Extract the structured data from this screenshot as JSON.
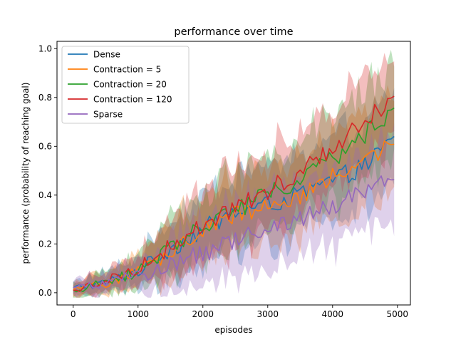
{
  "chart_data": {
    "type": "line",
    "title": "performance over time",
    "xlabel": "episodes",
    "ylabel": "performance (probability of reaching goal)",
    "xlim": [
      -250,
      5200
    ],
    "ylim": [
      -0.05,
      1.03
    ],
    "xticks": [
      0,
      1000,
      2000,
      3000,
      4000,
      5000
    ],
    "xtick_labels": [
      "0",
      "1000",
      "2000",
      "3000",
      "4000",
      "5000"
    ],
    "yticks": [
      0.0,
      0.2,
      0.4,
      0.6,
      0.8,
      1.0
    ],
    "ytick_labels": [
      "0.0",
      "0.2",
      "0.4",
      "0.6",
      "0.8",
      "1.0"
    ],
    "grid": false,
    "legend_position": "upper-left",
    "x_start": 0,
    "x_end": 4950,
    "x_step": 50,
    "series": [
      {
        "name": "Dense",
        "color": "#1f77b4",
        "anchors": [
          [
            0,
            0.02
          ],
          [
            500,
            0.04
          ],
          [
            1000,
            0.09
          ],
          [
            1500,
            0.18
          ],
          [
            2000,
            0.26
          ],
          [
            2500,
            0.33
          ],
          [
            3000,
            0.36
          ],
          [
            3500,
            0.4
          ],
          [
            4000,
            0.46
          ],
          [
            4500,
            0.52
          ],
          [
            4950,
            0.63
          ]
        ],
        "band": [
          [
            0,
            0.03
          ],
          [
            1000,
            0.06
          ],
          [
            1500,
            0.12
          ],
          [
            2500,
            0.16
          ],
          [
            3500,
            0.16
          ],
          [
            4950,
            0.18
          ]
        ]
      },
      {
        "name": "Contraction = 5",
        "color": "#ff7f0e",
        "anchors": [
          [
            0,
            0.01
          ],
          [
            500,
            0.04
          ],
          [
            1000,
            0.09
          ],
          [
            1500,
            0.17
          ],
          [
            2000,
            0.25
          ],
          [
            2500,
            0.32
          ],
          [
            3000,
            0.36
          ],
          [
            3500,
            0.4
          ],
          [
            4000,
            0.47
          ],
          [
            4500,
            0.56
          ],
          [
            4950,
            0.6
          ]
        ],
        "band": [
          [
            0,
            0.03
          ],
          [
            1000,
            0.06
          ],
          [
            1500,
            0.12
          ],
          [
            2500,
            0.16
          ],
          [
            3500,
            0.16
          ],
          [
            4950,
            0.18
          ]
        ]
      },
      {
        "name": "Contraction = 20",
        "color": "#2ca02c",
        "anchors": [
          [
            0,
            0.01
          ],
          [
            500,
            0.04
          ],
          [
            1000,
            0.09
          ],
          [
            1500,
            0.19
          ],
          [
            2000,
            0.28
          ],
          [
            2500,
            0.34
          ],
          [
            3000,
            0.4
          ],
          [
            3500,
            0.46
          ],
          [
            4000,
            0.55
          ],
          [
            4500,
            0.65
          ],
          [
            4950,
            0.75
          ]
        ],
        "band": [
          [
            0,
            0.03
          ],
          [
            1000,
            0.06
          ],
          [
            1500,
            0.12
          ],
          [
            2500,
            0.16
          ],
          [
            3500,
            0.17
          ],
          [
            4950,
            0.2
          ]
        ]
      },
      {
        "name": "Contraction = 120",
        "color": "#d62728",
        "anchors": [
          [
            0,
            0.01
          ],
          [
            500,
            0.05
          ],
          [
            1000,
            0.1
          ],
          [
            1500,
            0.19
          ],
          [
            2000,
            0.28
          ],
          [
            2500,
            0.35
          ],
          [
            3000,
            0.42
          ],
          [
            3500,
            0.5
          ],
          [
            4000,
            0.6
          ],
          [
            4500,
            0.7
          ],
          [
            4950,
            0.8
          ]
        ],
        "band": [
          [
            0,
            0.03
          ],
          [
            1000,
            0.06
          ],
          [
            1500,
            0.12
          ],
          [
            2500,
            0.16
          ],
          [
            3500,
            0.17
          ],
          [
            4950,
            0.2
          ]
        ]
      },
      {
        "name": "Sparse",
        "color": "#9467bd",
        "anchors": [
          [
            0,
            0.02
          ],
          [
            500,
            0.04
          ],
          [
            1000,
            0.07
          ],
          [
            1500,
            0.11
          ],
          [
            2000,
            0.16
          ],
          [
            2500,
            0.21
          ],
          [
            3000,
            0.26
          ],
          [
            3500,
            0.31
          ],
          [
            4000,
            0.36
          ],
          [
            4500,
            0.42
          ],
          [
            4950,
            0.46
          ]
        ],
        "band": [
          [
            0,
            0.03
          ],
          [
            1000,
            0.06
          ],
          [
            1500,
            0.12
          ],
          [
            2500,
            0.16
          ],
          [
            3500,
            0.16
          ],
          [
            4950,
            0.18
          ]
        ]
      }
    ]
  }
}
